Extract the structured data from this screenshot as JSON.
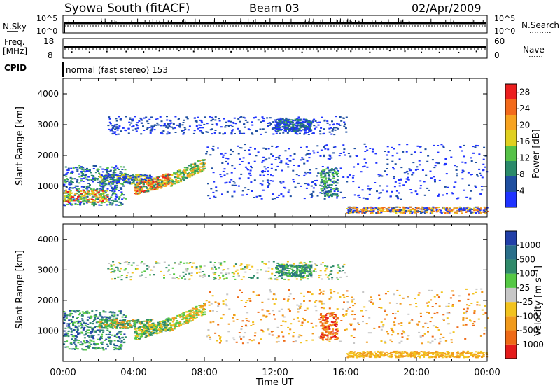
{
  "header": {
    "title": "Syowa South (fitACF)",
    "beam": "Beam 03",
    "date": "02/Apr/2009"
  },
  "noise_panel": {
    "left_label": "N.Sky",
    "left_ticks": [
      "10^5",
      "10^0"
    ],
    "right_ticks": [
      "10^5",
      "10^0"
    ],
    "right_label": "N.Search"
  },
  "freq_panel": {
    "left_label_1": "Freq.",
    "left_label_2": "[MHz]",
    "left_ticks": [
      "18",
      "8"
    ],
    "right_ticks": [
      "60",
      "0"
    ],
    "right_label": "Nave"
  },
  "cpid": {
    "label": "CPID",
    "text": "normal (fast stereo) 153"
  },
  "colors": {
    "power_scale": [
      "#1f33ff",
      "#1f4fa0",
      "#2a8a6a",
      "#56c248",
      "#e0d020",
      "#f7a320",
      "#f36a1b",
      "#ec1f1f"
    ],
    "velocity_scale": [
      "#213fa8",
      "#2a6f8a",
      "#2f8a6a",
      "#55c845",
      "#c7c7c7",
      "#f2c31e",
      "#f19a1c",
      "#ee6a16",
      "#e41b1b"
    ]
  },
  "chart_data": [
    {
      "type": "heatmap",
      "name": "power",
      "ylabel": "Slant Range [km]",
      "yticks": [
        "1000",
        "2000",
        "3000",
        "4000"
      ],
      "ylim": [
        0,
        4500
      ],
      "xticks": [
        "00:00",
        "04:00",
        "08:00",
        "12:00",
        "16:00",
        "20:00",
        "00:00"
      ],
      "colorbar_label": "Power [dB]",
      "colorbar_ticks": [
        "4",
        "8",
        "12",
        "16",
        "20",
        "24",
        "28"
      ],
      "colorbar_range": [
        0,
        30
      ]
    },
    {
      "type": "heatmap",
      "name": "velocity",
      "ylabel": "Slant Range [km]",
      "yticks": [
        "1000",
        "2000",
        "3000",
        "4000"
      ],
      "ylim": [
        0,
        4500
      ],
      "xticks": [
        "00:00",
        "04:00",
        "08:00",
        "12:00",
        "16:00",
        "20:00",
        "00:00"
      ],
      "xlabel": "Time UT",
      "colorbar_label": "Velocity [m s⁻¹]",
      "colorbar_ticks": [
        "1000",
        "500",
        "100",
        "25",
        "-25",
        "-100",
        "-500",
        "-1000"
      ]
    }
  ]
}
